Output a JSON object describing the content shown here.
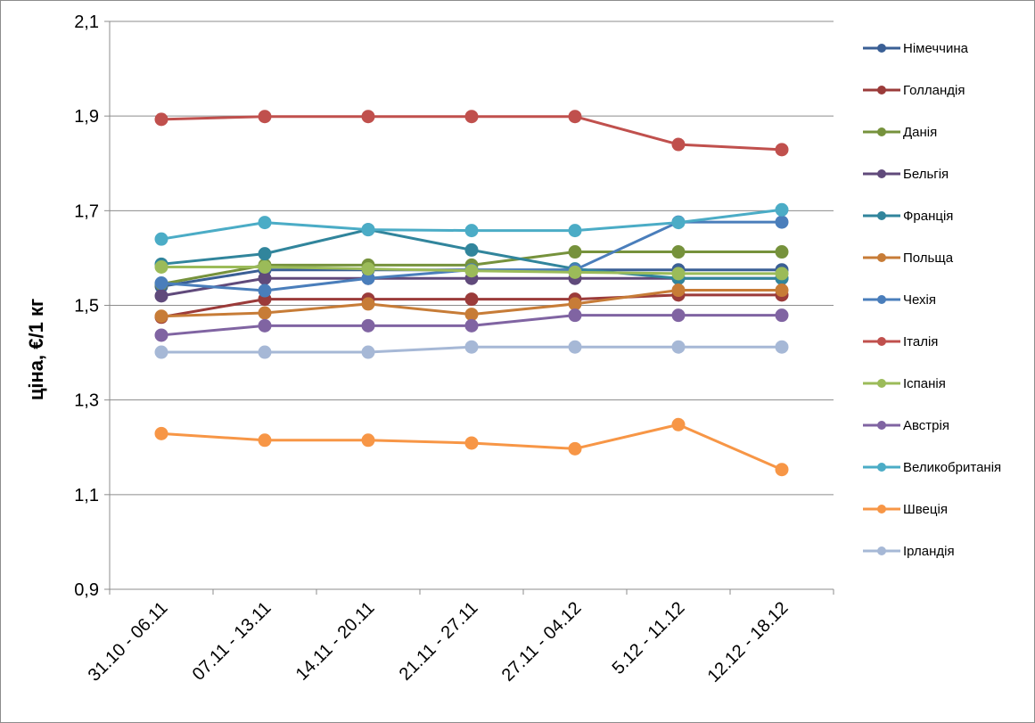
{
  "chart_data": {
    "type": "line",
    "title": "",
    "xlabel": "",
    "ylabel": "ціна, €/1 кг",
    "ylim": [
      0.9,
      2.1
    ],
    "yticks": [
      "0,9",
      "1,1",
      "1,3",
      "1,5",
      "1,7",
      "1,9",
      "2,1"
    ],
    "grid": true,
    "legend_position": "right",
    "categories": [
      "31.10 - 06.11",
      "07.11 - 13.11",
      "14.11 - 20.11",
      "21.11 - 27.11",
      "27.11 - 04.12",
      "5.12 - 11.12",
      "12.12 - 18.12"
    ],
    "series": [
      {
        "name": "Німеччина",
        "color": "#3a5f95",
        "values": [
          1.54,
          1.575,
          1.575,
          1.575,
          1.575,
          1.575,
          1.575
        ]
      },
      {
        "name": "Голландія",
        "color": "#9b3b3a",
        "values": [
          1.475,
          1.513,
          1.513,
          1.513,
          1.513,
          1.522,
          1.522
        ]
      },
      {
        "name": "Данія",
        "color": "#76923c",
        "values": [
          1.545,
          1.585,
          1.585,
          1.585,
          1.613,
          1.613,
          1.613
        ]
      },
      {
        "name": "Бельгія",
        "color": "#604a7b",
        "values": [
          1.52,
          1.557,
          1.557,
          1.557,
          1.557,
          1.557,
          1.557
        ]
      },
      {
        "name": "Франція",
        "color": "#31859c",
        "values": [
          1.587,
          1.609,
          1.66,
          1.617,
          1.577,
          1.557,
          1.557
        ]
      },
      {
        "name": "Польща",
        "color": "#c77c37",
        "values": [
          1.477,
          1.484,
          1.503,
          1.481,
          1.503,
          1.532,
          1.532
        ]
      },
      {
        "name": "Чехія",
        "color": "#4a7ebb",
        "values": [
          1.547,
          1.531,
          1.557,
          1.575,
          1.575,
          1.676,
          1.676
        ]
      },
      {
        "name": "Італія",
        "color": "#c0504d",
        "values": [
          1.893,
          1.899,
          1.899,
          1.899,
          1.899,
          1.84,
          1.829
        ]
      },
      {
        "name": "Іспанія",
        "color": "#9bbb59",
        "values": [
          1.581,
          1.581,
          1.577,
          1.573,
          1.57,
          1.567,
          1.567
        ]
      },
      {
        "name": "Австрія",
        "color": "#8064a2",
        "values": [
          1.437,
          1.457,
          1.457,
          1.457,
          1.479,
          1.479,
          1.479
        ]
      },
      {
        "name": "Великобританія",
        "color": "#4bacc6",
        "values": [
          1.64,
          1.675,
          1.66,
          1.658,
          1.658,
          1.675,
          1.702
        ]
      },
      {
        "name": "Швеція",
        "color": "#f79646",
        "values": [
          1.229,
          1.215,
          1.215,
          1.209,
          1.197,
          1.248,
          1.153
        ]
      },
      {
        "name": "Ірландія",
        "color": "#a6b8d6",
        "values": [
          1.401,
          1.401,
          1.401,
          1.412,
          1.412,
          1.412,
          1.412
        ]
      }
    ]
  }
}
